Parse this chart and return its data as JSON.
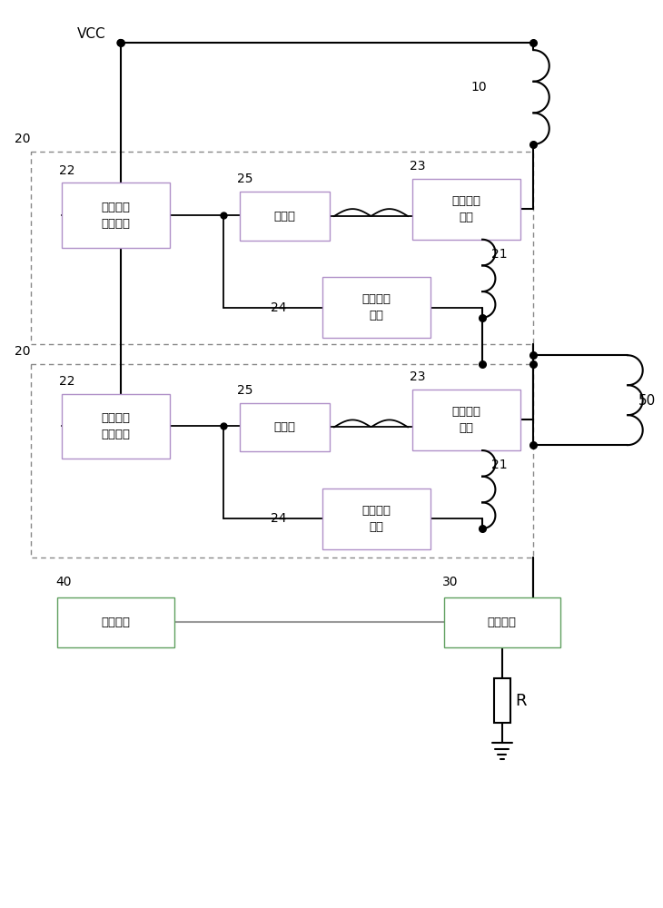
{
  "bg_color": "#ffffff",
  "line_color": "#000000",
  "vcc_label": "VCC",
  "label_10": "10",
  "label_20_1": "20",
  "label_20_2": "20",
  "label_21_1": "21",
  "label_21_2": "21",
  "label_22_1": "22",
  "label_22_2": "22",
  "label_23_1": "23",
  "label_23_2": "23",
  "label_24_1": "24",
  "label_24_2": "24",
  "label_25_1": "25",
  "label_25_2": "25",
  "label_30": "30",
  "label_40": "40",
  "label_50": "50",
  "label_R": "R",
  "box1_text": "电压检测\n驱动模块",
  "box2_text": "反相器",
  "box3_text": "第一电子\n开关",
  "box4_text": "第二电子\n开关",
  "box5_text": "电压检测\n驱动模块",
  "box6_text": "反相器",
  "box7_text": "第一电子\n开关",
  "box8_text": "第二电子\n开关",
  "box9_text": "控制芯片",
  "box10_text": "驱动开关"
}
